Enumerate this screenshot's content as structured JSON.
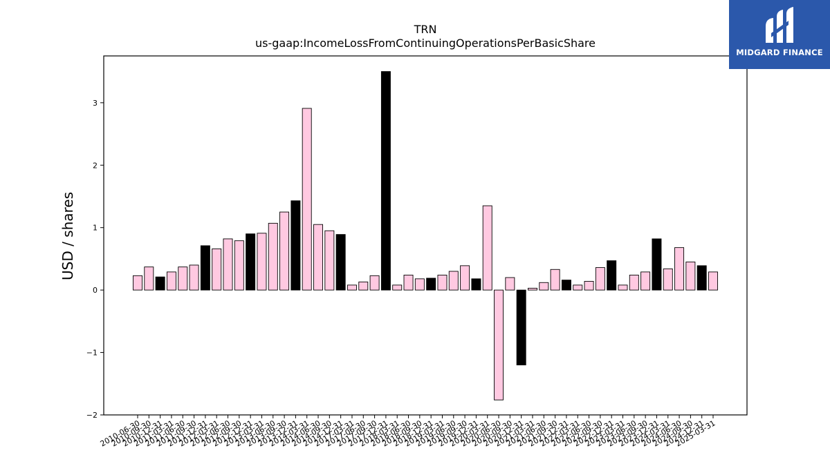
{
  "logo": {
    "text": "MIDGARD FINANCE",
    "icon": "midgard-m-icon",
    "background": "#2b58ab"
  },
  "colors": {
    "pink": "#ffc9e1",
    "black": "#000000",
    "edge": "#000000"
  },
  "chart_data": {
    "type": "bar",
    "title": "TRN",
    "subtitle": "us-gaap:IncomeLossFromContinuingOperationsPerBasicShare",
    "xlabel": "",
    "ylabel": "USD / shares",
    "ylim": [
      -2,
      3.75
    ],
    "yticks": [
      -2,
      -1,
      0,
      1,
      2,
      3
    ],
    "ytick_labels": [
      "−2",
      "−1",
      "0",
      "1",
      "2",
      "3"
    ],
    "grid": false,
    "categories": [
      "2010-06-30",
      "2010-09-30",
      "2010-12-31",
      "2011-03-31",
      "2011-06-30",
      "2011-09-30",
      "2011-12-31",
      "2012-03-31",
      "2012-06-30",
      "2012-09-30",
      "2012-12-31",
      "2013-03-31",
      "2013-06-30",
      "2013-09-30",
      "2013-12-31",
      "2014-03-31",
      "2014-06-30",
      "2014-09-30",
      "2014-12-31",
      "2017-03-31",
      "2017-06-30",
      "2017-09-30",
      "2017-12-31",
      "2018-03-31",
      "2018-06-30",
      "2018-09-30",
      "2018-12-31",
      "2019-03-31",
      "2019-06-30",
      "2019-09-30",
      "2019-12-31",
      "2020-03-31",
      "2020-06-30",
      "2020-09-30",
      "2020-12-31",
      "2021-03-31",
      "2021-06-30",
      "2021-09-30",
      "2021-12-31",
      "2022-03-31",
      "2022-06-30",
      "2022-09-30",
      "2022-12-31",
      "2023-03-31",
      "2023-06-30",
      "2023-09-30",
      "2023-12-31",
      "2024-03-31",
      "2024-06-30",
      "2024-09-30",
      "2024-12-31",
      "2025-03-31"
    ],
    "tick_labels": [
      "2010-06-30",
      "2010-09-30",
      "2010-12-31",
      "2011-03-31",
      "2011-06-30",
      "2011-09-30",
      "2011-12-31",
      "2012-03-31",
      "2012-06-30",
      "2012-09-30",
      "2012-12-31",
      "2013-03-31",
      "2013-06-30",
      "2013-09-30",
      "2013-12-31",
      "2014-03-31",
      "2014-06-30",
      "2014-09-30",
      "2014-12-31",
      "2017-03-31",
      "2017-06-30",
      "2017-09-30",
      "2017-12-31",
      "2018-03-31",
      "2018-06-30",
      "2018-09-30",
      "2018-12-31",
      "2019-03-31",
      "2019-06-30",
      "2019-09-30",
      "2019-12-31",
      "2020-03-31",
      "2020-06-30",
      "2020-09-30",
      "2020-12-31",
      "2021-03-31",
      "2021-06-30",
      "2021-09-30",
      "2021-12-31",
      "2022-03-31",
      "2022-06-30",
      "2022-09-30",
      "2022-12-31",
      "2023-03-31",
      "2023-06-30",
      "2023-09-30",
      "2023-12-31",
      "2024-03-31",
      "2024-06-30",
      "2024-09-30",
      "2024-12-31",
      "2025-03-31"
    ],
    "values": [
      0.23,
      0.37,
      0.21,
      0.29,
      0.37,
      0.4,
      0.71,
      0.66,
      0.82,
      0.79,
      0.9,
      0.91,
      1.07,
      1.25,
      1.43,
      2.91,
      1.05,
      0.95,
      0.89,
      0.08,
      0.13,
      0.23,
      3.5,
      0.08,
      0.24,
      0.18,
      0.19,
      0.24,
      0.3,
      0.39,
      0.18,
      1.35,
      -1.76,
      0.2,
      -1.2,
      0.03,
      0.12,
      0.33,
      0.16,
      0.08,
      0.14,
      0.36,
      0.47,
      0.08,
      0.24,
      0.29,
      0.82,
      0.34,
      0.68,
      0.45,
      0.39,
      0.29
    ],
    "bar_colors": [
      "pink",
      "pink",
      "black",
      "pink",
      "pink",
      "pink",
      "black",
      "pink",
      "pink",
      "pink",
      "black",
      "pink",
      "pink",
      "pink",
      "black",
      "pink",
      "pink",
      "pink",
      "black",
      "pink",
      "pink",
      "pink",
      "black",
      "pink",
      "pink",
      "pink",
      "black",
      "pink",
      "pink",
      "pink",
      "black",
      "pink",
      "pink",
      "pink",
      "black",
      "pink",
      "pink",
      "pink",
      "black",
      "pink",
      "pink",
      "pink",
      "black",
      "pink",
      "pink",
      "pink",
      "black",
      "pink",
      "pink",
      "pink",
      "black",
      "pink"
    ]
  }
}
